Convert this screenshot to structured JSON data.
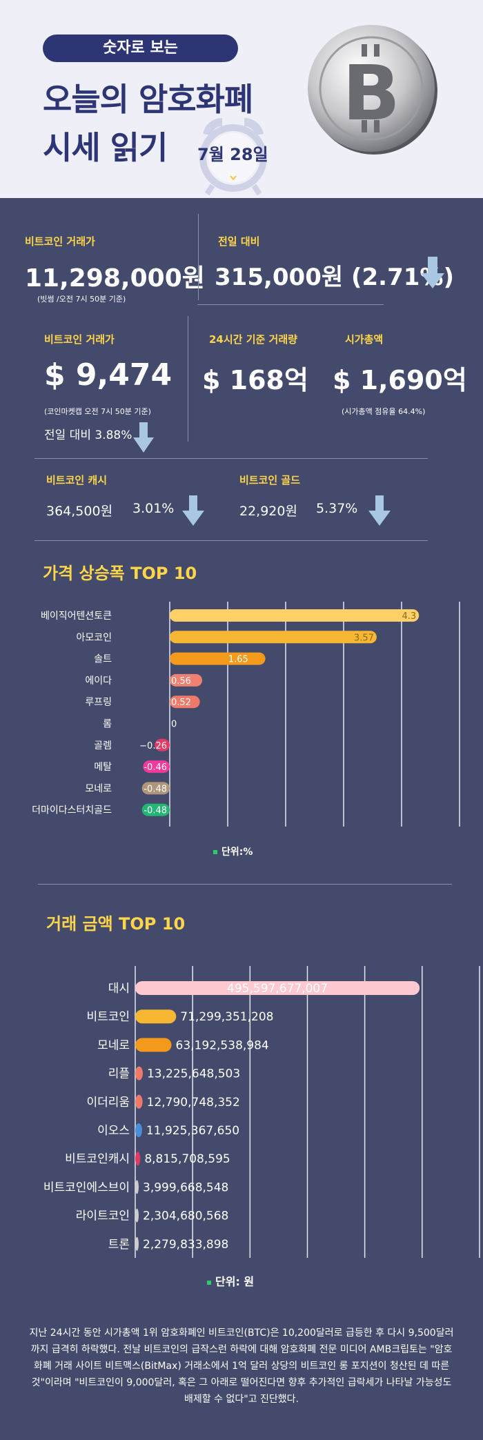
{
  "header": {
    "pill": "숫자로 보는",
    "title_line1": "오늘의 암호화폐",
    "title_line2": "시세 읽기",
    "date": "7월 28일"
  },
  "stats": {
    "btc_krw": {
      "label": "비트코인 거래가",
      "value": "11,298,000원",
      "note": "(빗썸 /오전 7시 50분 기준)"
    },
    "prev_day": {
      "label": "전일 대비",
      "value": "315,000원 (2.71%)"
    },
    "btc_usd": {
      "label": "비트코인 거래가",
      "value": "$ 9,474",
      "note": "(코인마켓캡 오전 7시 50분 기준)",
      "change": "전일 대비 3.88%"
    },
    "volume": {
      "label": "24시간 기준 거래량",
      "value": "$ 168억"
    },
    "market_cap": {
      "label": "시가총액",
      "value": "$ 1,690억",
      "note": "(시가총액 점유율 64.4%)"
    },
    "bch": {
      "label": "비트코인 캐시",
      "value": "364,500원",
      "change": "3.01%"
    },
    "btg": {
      "label": "비트코인 골드",
      "value": "22,920원",
      "change": "5.37%"
    }
  },
  "colors": {
    "accent": "#ffd54a",
    "background": "#434a6b",
    "header_bg": "#eff0f7",
    "navy": "#2e3574",
    "arrow": "#a9c7e3"
  },
  "chart_data": [
    {
      "type": "bar",
      "title": "가격 상승폭 TOP 10",
      "unit_label": "단위:%",
      "categories": [
        "베이직어텐션토큰",
        "아모코인",
        "솔트",
        "에이다",
        "루프링",
        "롬",
        "골렘",
        "메탈",
        "모네로",
        "더마이다스터치골드"
      ],
      "values": [
        4.3,
        3.57,
        1.65,
        0.56,
        0.52,
        0,
        -0.26,
        -0.46,
        -0.48,
        -0.48
      ],
      "labels": [
        "4.3",
        "3.57",
        "1.65",
        "0.56",
        "0.52",
        "0",
        "−0.26",
        "-0.46",
        "-0.48",
        "-0.48"
      ],
      "colors": [
        "#ffd066",
        "#f7b733",
        "#f39a1c",
        "#f08070",
        "#f07a6a",
        "#cccccc",
        "#e23a64",
        "#f23a9a",
        "#b0957a",
        "#22b573"
      ],
      "xlim": [
        -0.5,
        5
      ],
      "grid": true
    },
    {
      "type": "bar",
      "title": "거래 금액 TOP 10",
      "unit_label": "단위: 원",
      "categories": [
        "대시",
        "비트코인",
        "모네로",
        "리플",
        "이더리움",
        "이오스",
        "비트코인캐시",
        "비트코인에스브이",
        "라이트코인",
        "트론"
      ],
      "values": [
        495597677007,
        71299351208,
        63192538984,
        13225648503,
        12790748352,
        11925367650,
        8815708595,
        3999668548,
        2304680568,
        2279833898
      ],
      "labels": [
        "495,597,677,007",
        "71,299,351,208",
        "63,192,538,984",
        "13,225,648,503",
        "12,790,748,352",
        "11,925,367,650",
        "8,815,708,595",
        "3,999,668,548",
        "2,304,680,568",
        "2,279,833,898"
      ],
      "colors": [
        "#ffc9d2",
        "#f7b733",
        "#f39a1c",
        "#f07a6a",
        "#f07a6a",
        "#4a90d9",
        "#e23a64",
        "#cccccc",
        "#cccccc",
        "#cccccc"
      ],
      "xlim": [
        0,
        1000000000000
      ],
      "grid": true
    }
  ],
  "paragraph": "지난 24시간 동안 시가총액 1위 암호화폐인 비트코인(BTC)은 10,200달러로 급등한 후 다시 9,500달러까지 급격히 하락했다. 전날 비트코인의 급작스런 하락에 대해 암호화폐 전문 미디어 AMB크립토는 \"암호화폐 거래 사이트 비트맥스(BitMax) 거래소에서 1억 달러 상당의 비트코인 롱 포지션이 청산된 데 따른 것\"이라며 \"비트코인이 9,000달러, 혹은 그 아래로 떨어진다면 향후 추가적인 급락세가 나타날 가능성도 배제할 수 없다\"고 진단했다."
}
